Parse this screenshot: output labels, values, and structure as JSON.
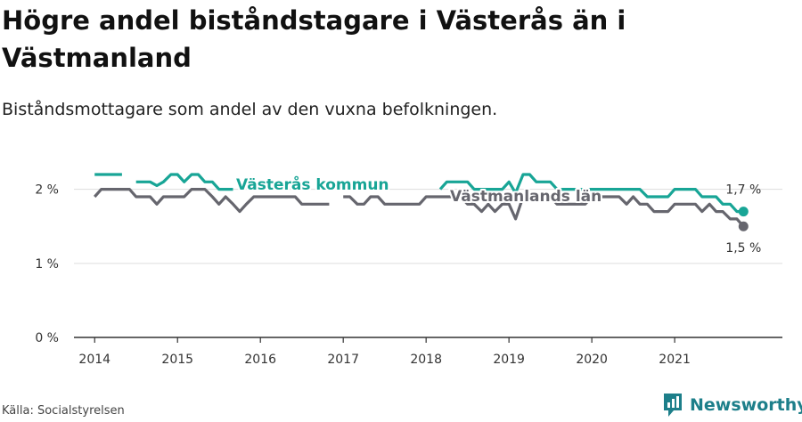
{
  "title": "Högre andel biståndstagare i Västerås än i Västmanland",
  "subtitle": "Biståndsmottagare som andel av den vuxna befolkningen.",
  "source": "Källa: Socialstyrelsen",
  "brand": {
    "name": "Newsworthy",
    "icon": "newsworthy-logo-icon"
  },
  "colors": {
    "vasteras": "#18a596",
    "vastmanland": "#66666e",
    "grid": "#dddddd",
    "axis": "#333333"
  },
  "chart_data": {
    "type": "line",
    "title": "Högre andel biståndstagare i Västerås än i Västmanland",
    "subtitle": "Biståndsmottagare som andel av den vuxna befolkningen.",
    "xlabel": "",
    "ylabel": "",
    "xlim": [
      2013.75,
      2022.3
    ],
    "ylim": [
      0,
      2.2
    ],
    "x_ticks": [
      {
        "value": 2014,
        "label": "2014"
      },
      {
        "value": 2015,
        "label": "2015"
      },
      {
        "value": 2016,
        "label": "2016"
      },
      {
        "value": 2017,
        "label": "2017"
      },
      {
        "value": 2018,
        "label": "2018"
      },
      {
        "value": 2019,
        "label": "2019"
      },
      {
        "value": 2020,
        "label": "2020"
      },
      {
        "value": 2021,
        "label": "2021"
      }
    ],
    "y_ticks": [
      {
        "value": 0,
        "label": "0 %"
      },
      {
        "value": 1,
        "label": "1 %"
      },
      {
        "value": 2,
        "label": "2 %"
      }
    ],
    "grid": true,
    "series": [
      {
        "name": "Västerås kommun",
        "color": "#18a596",
        "end_label": "1,7 %",
        "segments": [
          [
            [
              2014.0,
              2.2
            ],
            [
              2014.33,
              2.2
            ]
          ],
          [
            [
              2014.5,
              2.1
            ],
            [
              2014.67,
              2.1
            ],
            [
              2014.75,
              2.05
            ],
            [
              2014.83,
              2.1
            ],
            [
              2014.92,
              2.2
            ],
            [
              2015.0,
              2.2
            ],
            [
              2015.08,
              2.1
            ],
            [
              2015.17,
              2.2
            ],
            [
              2015.25,
              2.2
            ],
            [
              2015.33,
              2.1
            ],
            [
              2015.42,
              2.1
            ],
            [
              2015.5,
              2.0
            ],
            [
              2015.58,
              2.0
            ],
            [
              2015.67,
              2.0
            ]
          ],
          [
            [
              2018.17,
              2.0
            ],
            [
              2018.25,
              2.1
            ],
            [
              2018.33,
              2.1
            ],
            [
              2018.42,
              2.1
            ],
            [
              2018.5,
              2.1
            ],
            [
              2018.58,
              2.0
            ],
            [
              2018.67,
              2.0
            ],
            [
              2018.75,
              2.0
            ],
            [
              2018.83,
              2.0
            ],
            [
              2018.92,
              2.0
            ],
            [
              2019.0,
              2.1
            ],
            [
              2019.08,
              1.95
            ],
            [
              2019.17,
              2.2
            ],
            [
              2019.25,
              2.2
            ],
            [
              2019.33,
              2.1
            ],
            [
              2019.42,
              2.1
            ],
            [
              2019.5,
              2.1
            ],
            [
              2019.58,
              2.0
            ],
            [
              2019.67,
              2.0
            ],
            [
              2019.75,
              2.0
            ],
            [
              2019.83,
              2.0
            ],
            [
              2019.92,
              2.0
            ],
            [
              2020.0,
              2.0
            ],
            [
              2020.08,
              2.0
            ],
            [
              2020.17,
              2.0
            ],
            [
              2020.25,
              2.0
            ],
            [
              2020.33,
              2.0
            ],
            [
              2020.42,
              2.0
            ],
            [
              2020.5,
              2.0
            ],
            [
              2020.58,
              2.0
            ],
            [
              2020.67,
              1.9
            ],
            [
              2020.75,
              1.9
            ],
            [
              2020.83,
              1.9
            ],
            [
              2020.92,
              1.9
            ],
            [
              2021.0,
              2.0
            ],
            [
              2021.08,
              2.0
            ],
            [
              2021.17,
              2.0
            ],
            [
              2021.25,
              2.0
            ],
            [
              2021.33,
              1.9
            ],
            [
              2021.42,
              1.9
            ],
            [
              2021.5,
              1.9
            ],
            [
              2021.58,
              1.8
            ],
            [
              2021.67,
              1.8
            ],
            [
              2021.75,
              1.7
            ],
            [
              2021.83,
              1.7
            ]
          ]
        ]
      },
      {
        "name": "Västmanlands län",
        "color": "#66666e",
        "end_label": "1,5 %",
        "segments": [
          [
            [
              2014.0,
              1.9
            ],
            [
              2014.08,
              2.0
            ],
            [
              2014.17,
              2.0
            ],
            [
              2014.25,
              2.0
            ],
            [
              2014.33,
              2.0
            ],
            [
              2014.42,
              2.0
            ],
            [
              2014.5,
              1.9
            ],
            [
              2014.58,
              1.9
            ],
            [
              2014.67,
              1.9
            ],
            [
              2014.75,
              1.8
            ],
            [
              2014.83,
              1.9
            ],
            [
              2014.92,
              1.9
            ],
            [
              2015.0,
              1.9
            ],
            [
              2015.08,
              1.9
            ],
            [
              2015.17,
              2.0
            ],
            [
              2015.25,
              2.0
            ],
            [
              2015.33,
              2.0
            ],
            [
              2015.42,
              1.9
            ],
            [
              2015.5,
              1.8
            ],
            [
              2015.58,
              1.9
            ],
            [
              2015.67,
              1.8
            ],
            [
              2015.75,
              1.7
            ],
            [
              2015.83,
              1.8
            ],
            [
              2015.92,
              1.9
            ],
            [
              2016.0,
              1.9
            ],
            [
              2016.08,
              1.9
            ],
            [
              2016.17,
              1.9
            ],
            [
              2016.25,
              1.9
            ],
            [
              2016.33,
              1.9
            ],
            [
              2016.42,
              1.9
            ],
            [
              2016.5,
              1.8
            ],
            [
              2016.58,
              1.8
            ],
            [
              2016.67,
              1.8
            ],
            [
              2016.75,
              1.8
            ],
            [
              2016.83,
              1.8
            ]
          ],
          [
            [
              2017.0,
              1.9
            ],
            [
              2017.08,
              1.9
            ],
            [
              2017.17,
              1.8
            ],
            [
              2017.25,
              1.8
            ],
            [
              2017.33,
              1.9
            ],
            [
              2017.42,
              1.9
            ],
            [
              2017.5,
              1.8
            ],
            [
              2017.58,
              1.8
            ],
            [
              2017.67,
              1.8
            ],
            [
              2017.75,
              1.8
            ],
            [
              2017.83,
              1.8
            ],
            [
              2017.92,
              1.8
            ],
            [
              2018.0,
              1.9
            ],
            [
              2018.08,
              1.9
            ],
            [
              2018.17,
              1.9
            ],
            [
              2018.25,
              1.9
            ],
            [
              2018.33,
              1.9
            ],
            [
              2018.42,
              1.9
            ],
            [
              2018.5,
              1.8
            ],
            [
              2018.58,
              1.8
            ],
            [
              2018.67,
              1.7
            ],
            [
              2018.75,
              1.8
            ],
            [
              2018.83,
              1.7
            ],
            [
              2018.92,
              1.8
            ],
            [
              2019.0,
              1.8
            ],
            [
              2019.08,
              1.6
            ],
            [
              2019.17,
              1.9
            ],
            [
              2019.25,
              1.9
            ],
            [
              2019.33,
              1.9
            ],
            [
              2019.42,
              1.9
            ],
            [
              2019.5,
              1.9
            ],
            [
              2019.58,
              1.8
            ],
            [
              2019.67,
              1.8
            ],
            [
              2019.75,
              1.8
            ],
            [
              2019.83,
              1.8
            ],
            [
              2019.92,
              1.8
            ],
            [
              2020.0,
              1.9
            ],
            [
              2020.08,
              1.9
            ],
            [
              2020.17,
              1.9
            ],
            [
              2020.25,
              1.9
            ],
            [
              2020.33,
              1.9
            ],
            [
              2020.42,
              1.8
            ],
            [
              2020.5,
              1.9
            ],
            [
              2020.58,
              1.8
            ],
            [
              2020.67,
              1.8
            ],
            [
              2020.75,
              1.7
            ],
            [
              2020.83,
              1.7
            ],
            [
              2020.92,
              1.7
            ],
            [
              2021.0,
              1.8
            ],
            [
              2021.08,
              1.8
            ],
            [
              2021.17,
              1.8
            ],
            [
              2021.25,
              1.8
            ],
            [
              2021.33,
              1.7
            ],
            [
              2021.42,
              1.8
            ],
            [
              2021.5,
              1.7
            ],
            [
              2021.58,
              1.7
            ],
            [
              2021.67,
              1.6
            ],
            [
              2021.75,
              1.6
            ],
            [
              2021.83,
              1.5
            ]
          ]
        ]
      }
    ]
  }
}
